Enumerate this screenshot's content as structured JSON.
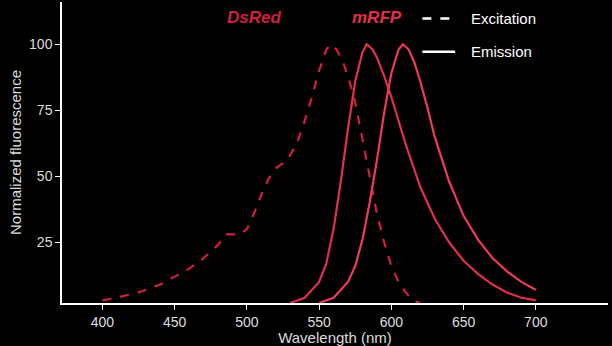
{
  "chart_data": {
    "type": "line",
    "x_label": "Wavelength (nm)",
    "y_label": "Normalized fluorescence",
    "xlim": [
      372,
      750
    ],
    "ylim": [
      2,
      116
    ],
    "xticks": [
      400,
      450,
      500,
      550,
      600,
      650,
      700
    ],
    "yticks": [
      25,
      50,
      75,
      100
    ],
    "grid": false,
    "series": [
      {
        "name": "DsRed",
        "color": "#d01f3c",
        "line_style": "dash",
        "x": [
          400,
          410,
          425,
          440,
          450,
          460,
          470,
          480,
          485,
          490,
          495,
          500,
          505,
          510,
          515,
          520,
          525,
          530,
          535,
          540,
          545,
          550,
          555,
          558,
          562,
          566,
          570,
          575,
          580,
          585,
          590,
          595,
          600,
          605,
          610,
          615,
          620
        ],
        "values": [
          3,
          4,
          6,
          9,
          12,
          15,
          19,
          24,
          28,
          28,
          28,
          30,
          36,
          43,
          49,
          53,
          55,
          58,
          63,
          71,
          80,
          90,
          98,
          100,
          98,
          94,
          88,
          78,
          64,
          50,
          36,
          25,
          16,
          10,
          6,
          3,
          2
        ]
      },
      {
        "name": "DsRed",
        "color": "#e0304a",
        "line_style": "solid",
        "x": [
          530,
          540,
          550,
          555,
          560,
          565,
          570,
          575,
          580,
          583,
          587,
          590,
          595,
          600,
          610,
          620,
          630,
          640,
          650,
          660,
          670,
          680,
          690,
          700
        ],
        "values": [
          2,
          4,
          10,
          17,
          30,
          48,
          68,
          86,
          97,
          100,
          98,
          95,
          88,
          80,
          62,
          46,
          34,
          25,
          18,
          13,
          9,
          6,
          4,
          3
        ]
      },
      {
        "name": "mRFP",
        "color": "#f03a55",
        "line_style": "solid",
        "x": [
          550,
          560,
          570,
          575,
          580,
          585,
          590,
          595,
          600,
          605,
          608,
          612,
          616,
          620,
          625,
          630,
          640,
          650,
          660,
          670,
          680,
          690,
          700
        ],
        "values": [
          2,
          4,
          10,
          16,
          26,
          40,
          56,
          74,
          89,
          98,
          100,
          98,
          93,
          86,
          76,
          65,
          48,
          35,
          26,
          19,
          14,
          10,
          7
        ]
      }
    ],
    "annotations": [
      {
        "text": "DsRed",
        "x": 505,
        "y": 110,
        "color": "#d01f3c"
      },
      {
        "text": "mRFP",
        "x": 590,
        "y": 110,
        "color": "#e0304a"
      }
    ],
    "legend": "top right",
    "legend_items": [
      {
        "label": "Excitation",
        "line_style": "dash"
      },
      {
        "label": "Emission",
        "line_style": "solid"
      }
    ]
  }
}
